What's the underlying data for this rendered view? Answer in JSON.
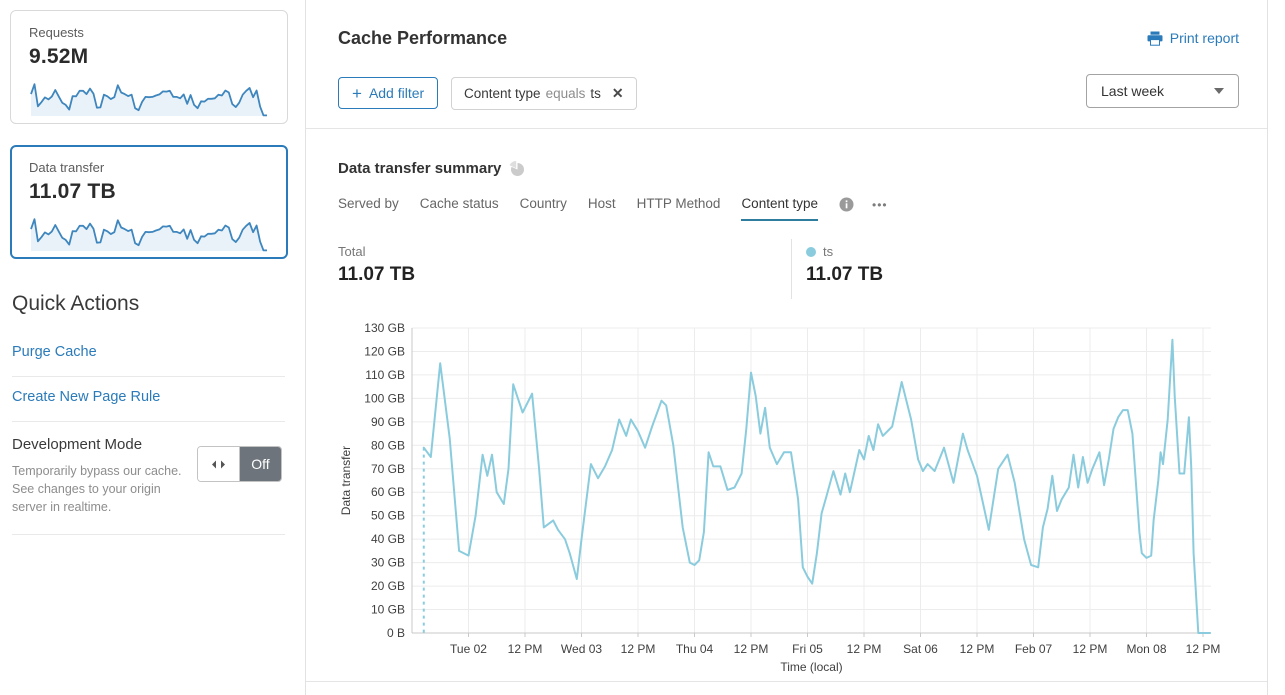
{
  "colors": {
    "accent_blue": "#2b7bba",
    "chart_line": "#8accdd",
    "spark_stroke": "#3e86bd",
    "spark_fill": "#e9f2f9",
    "tab_underline": "#2e7d9e",
    "toggle_off_bg": "#6d747b",
    "grid": "#ececec",
    "axis": "#c9c9c9"
  },
  "sidebar": {
    "cards": [
      {
        "label": "Requests",
        "value": "9.52M",
        "selected": false,
        "spark": [
          79,
          115,
          35,
          50,
          67,
          60,
          70,
          94,
          70,
          48,
          40,
          23,
          72,
          71,
          91,
          91,
          79,
          99,
          80,
          30,
          31,
          77,
          71,
          61,
          68,
          111,
          85,
          79,
          72,
          77,
          28,
          21,
          51,
          69,
          68,
          69,
          74,
          78,
          89,
          88,
          91,
          69,
          69,
          64,
          78,
          44,
          76,
          40,
          28,
          53,
          52,
          62,
          62,
          64,
          77,
          74,
          92,
          85,
          43,
          32,
          48,
          77,
          91,
          101,
          68,
          92,
          34,
          2,
          2
        ]
      },
      {
        "label": "Data transfer",
        "value": "11.07 TB",
        "selected": true,
        "spark": [
          79,
          115,
          35,
          50,
          67,
          60,
          70,
          94,
          70,
          48,
          40,
          23,
          72,
          71,
          91,
          91,
          79,
          99,
          80,
          30,
          31,
          77,
          71,
          61,
          68,
          111,
          85,
          79,
          72,
          77,
          28,
          21,
          51,
          69,
          68,
          69,
          74,
          78,
          89,
          88,
          91,
          69,
          69,
          64,
          78,
          44,
          76,
          40,
          28,
          53,
          52,
          62,
          62,
          64,
          77,
          74,
          92,
          85,
          43,
          32,
          48,
          77,
          91,
          101,
          68,
          92,
          34,
          2,
          2
        ]
      }
    ],
    "quick_actions": {
      "title": "Quick Actions",
      "links": [
        "Purge Cache",
        "Create New Page Rule"
      ],
      "dev_mode": {
        "label": "Development Mode",
        "description": "Temporarily bypass our cache. See changes to your origin server in realtime.",
        "toggle_state": "Off"
      }
    }
  },
  "header": {
    "title": "Cache Performance",
    "print_label": "Print report"
  },
  "filters": {
    "add_icon": "+",
    "add_label": "Add filter",
    "chips": [
      {
        "field": "Content type",
        "operator": "equals",
        "value": "ts",
        "close_glyph": "✕"
      }
    ],
    "range_label": "Last week"
  },
  "summary": {
    "title": "Data transfer summary",
    "tabs": [
      "Served by",
      "Cache status",
      "Country",
      "Host",
      "HTTP Method",
      "Content type"
    ],
    "active_tab": "Content type",
    "more_glyph": "•••",
    "total_label": "Total",
    "total_value": "11.07 TB",
    "legend": [
      {
        "name": "ts",
        "value": "11.07 TB",
        "color": "#8accdd"
      }
    ]
  },
  "chart_data": {
    "type": "line",
    "title": "Data transfer summary",
    "xlabel": "Time (local)",
    "ylabel": "Data transfer",
    "units": "GB",
    "grid": true,
    "x_domain_hours": [
      0,
      169.7
    ],
    "y_domain_gb": [
      0,
      130
    ],
    "y_ticks": [
      {
        "gb": 0,
        "label": "0 B"
      },
      {
        "gb": 10,
        "label": "10 GB"
      },
      {
        "gb": 20,
        "label": "20 GB"
      },
      {
        "gb": 30,
        "label": "30 GB"
      },
      {
        "gb": 40,
        "label": "40 GB"
      },
      {
        "gb": 50,
        "label": "50 GB"
      },
      {
        "gb": 60,
        "label": "60 GB"
      },
      {
        "gb": 70,
        "label": "70 GB"
      },
      {
        "gb": 80,
        "label": "80 GB"
      },
      {
        "gb": 90,
        "label": "90 GB"
      },
      {
        "gb": 100,
        "label": "100 GB"
      },
      {
        "gb": 110,
        "label": "110 GB"
      },
      {
        "gb": 120,
        "label": "120 GB"
      },
      {
        "gb": 130,
        "label": "130 GB"
      }
    ],
    "x_ticks": [
      {
        "hour": 12,
        "label": "Tue 02"
      },
      {
        "hour": 24,
        "label": "12 PM"
      },
      {
        "hour": 36,
        "label": "Wed 03"
      },
      {
        "hour": 48,
        "label": "12 PM"
      },
      {
        "hour": 60,
        "label": "Thu 04"
      },
      {
        "hour": 72,
        "label": "12 PM"
      },
      {
        "hour": 84,
        "label": "Fri 05"
      },
      {
        "hour": 96,
        "label": "12 PM"
      },
      {
        "hour": 108,
        "label": "Sat 06"
      },
      {
        "hour": 120,
        "label": "12 PM"
      },
      {
        "hour": 132,
        "label": "Feb 07"
      },
      {
        "hour": 144,
        "label": "12 PM"
      },
      {
        "hour": 156,
        "label": "Mon 08"
      },
      {
        "hour": 168,
        "label": "12 PM"
      }
    ],
    "start_marker": "dashed-drop-to-zero",
    "series": [
      {
        "name": "ts",
        "color": "#8accdd",
        "points": [
          [
            2.5,
            79
          ],
          [
            4,
            75
          ],
          [
            6,
            115
          ],
          [
            8,
            83
          ],
          [
            10,
            35
          ],
          [
            12,
            33
          ],
          [
            13.5,
            50
          ],
          [
            15,
            76
          ],
          [
            16,
            67
          ],
          [
            17,
            76
          ],
          [
            18,
            60
          ],
          [
            19.5,
            55
          ],
          [
            20.5,
            70
          ],
          [
            21.5,
            106
          ],
          [
            23.5,
            94
          ],
          [
            25.5,
            102
          ],
          [
            27,
            70
          ],
          [
            28,
            45
          ],
          [
            30,
            48
          ],
          [
            31,
            44
          ],
          [
            32.5,
            40
          ],
          [
            33.5,
            34
          ],
          [
            35,
            23
          ],
          [
            36,
            40
          ],
          [
            38,
            72
          ],
          [
            39.5,
            66
          ],
          [
            41,
            71
          ],
          [
            42.5,
            78
          ],
          [
            44,
            91
          ],
          [
            45.5,
            84
          ],
          [
            46.5,
            91
          ],
          [
            48,
            86
          ],
          [
            49.5,
            79
          ],
          [
            51,
            88
          ],
          [
            53,
            99
          ],
          [
            54,
            97
          ],
          [
            55.5,
            80
          ],
          [
            57.5,
            45
          ],
          [
            59,
            30
          ],
          [
            60,
            29
          ],
          [
            61,
            31
          ],
          [
            62,
            43
          ],
          [
            63,
            77
          ],
          [
            64,
            71
          ],
          [
            65.5,
            71
          ],
          [
            67,
            61
          ],
          [
            68.5,
            62
          ],
          [
            70,
            68
          ],
          [
            71,
            87
          ],
          [
            72,
            111
          ],
          [
            73,
            101
          ],
          [
            74,
            85
          ],
          [
            75,
            96
          ],
          [
            76,
            79
          ],
          [
            77.5,
            72
          ],
          [
            79,
            77
          ],
          [
            80.5,
            77
          ],
          [
            82,
            57
          ],
          [
            83,
            28
          ],
          [
            84,
            24
          ],
          [
            85,
            21
          ],
          [
            86,
            34
          ],
          [
            87,
            51
          ],
          [
            88,
            58
          ],
          [
            89.5,
            69
          ],
          [
            91,
            59
          ],
          [
            92,
            68
          ],
          [
            93,
            60
          ],
          [
            94,
            69
          ],
          [
            95,
            78
          ],
          [
            96,
            74
          ],
          [
            97,
            84
          ],
          [
            98,
            78
          ],
          [
            99,
            89
          ],
          [
            100,
            84
          ],
          [
            102,
            88
          ],
          [
            104,
            107
          ],
          [
            106,
            91
          ],
          [
            107.5,
            74
          ],
          [
            108.5,
            69
          ],
          [
            109.5,
            72
          ],
          [
            111,
            69
          ],
          [
            113,
            79
          ],
          [
            115,
            64
          ],
          [
            117,
            85
          ],
          [
            118,
            78
          ],
          [
            120,
            67
          ],
          [
            122.5,
            44
          ],
          [
            124.5,
            70
          ],
          [
            126.5,
            76
          ],
          [
            128,
            64
          ],
          [
            130,
            40
          ],
          [
            131.5,
            29
          ],
          [
            133,
            28
          ],
          [
            134,
            45
          ],
          [
            135,
            53
          ],
          [
            136,
            67
          ],
          [
            137,
            52
          ],
          [
            138,
            57
          ],
          [
            139.5,
            62
          ],
          [
            140.5,
            76
          ],
          [
            141.5,
            62
          ],
          [
            142.5,
            75
          ],
          [
            143.5,
            64
          ],
          [
            144.5,
            70
          ],
          [
            146,
            77
          ],
          [
            147,
            63
          ],
          [
            148,
            74
          ],
          [
            149,
            87
          ],
          [
            150,
            92
          ],
          [
            151,
            95
          ],
          [
            152,
            95
          ],
          [
            153,
            85
          ],
          [
            154,
            57
          ],
          [
            154.5,
            43
          ],
          [
            155,
            34
          ],
          [
            156,
            32
          ],
          [
            157,
            33
          ],
          [
            157.5,
            48
          ],
          [
            158.5,
            65
          ],
          [
            159,
            77
          ],
          [
            159.5,
            72
          ],
          [
            160.5,
            91
          ],
          [
            161.5,
            125
          ],
          [
            162,
            101
          ],
          [
            163,
            68
          ],
          [
            164,
            68
          ],
          [
            165,
            92
          ],
          [
            165.5,
            71
          ],
          [
            166,
            34
          ],
          [
            167,
            0
          ],
          [
            168,
            0
          ],
          [
            169.5,
            0
          ]
        ]
      }
    ]
  }
}
